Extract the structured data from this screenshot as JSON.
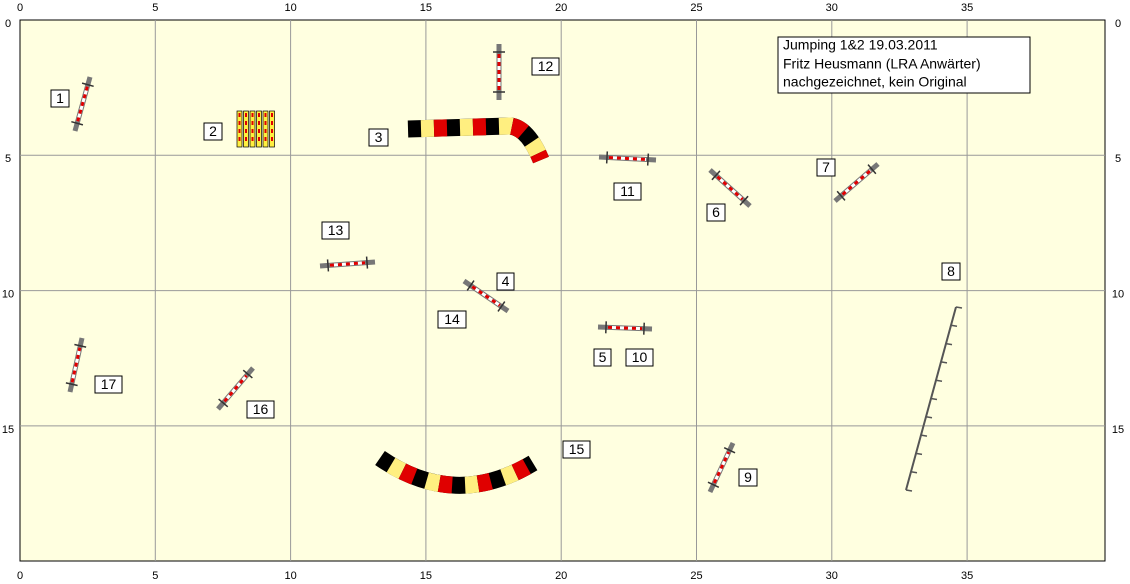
{
  "axes": {
    "x_ticks": [
      0,
      5,
      10,
      15,
      20,
      25,
      30,
      35
    ],
    "y_ticks": [
      0,
      5,
      10,
      15
    ]
  },
  "info": {
    "lines": [
      "Jumping 1&2 19.03.2011",
      "Fritz Heusmann (LRA Anwärter)",
      "nachgezeichnet, kein Original"
    ]
  },
  "labels": [
    "1",
    "2",
    "3",
    "4",
    "5",
    "6",
    "7",
    "8",
    "9",
    "10",
    "11",
    "12",
    "13",
    "14",
    "15",
    "16",
    "17"
  ]
}
